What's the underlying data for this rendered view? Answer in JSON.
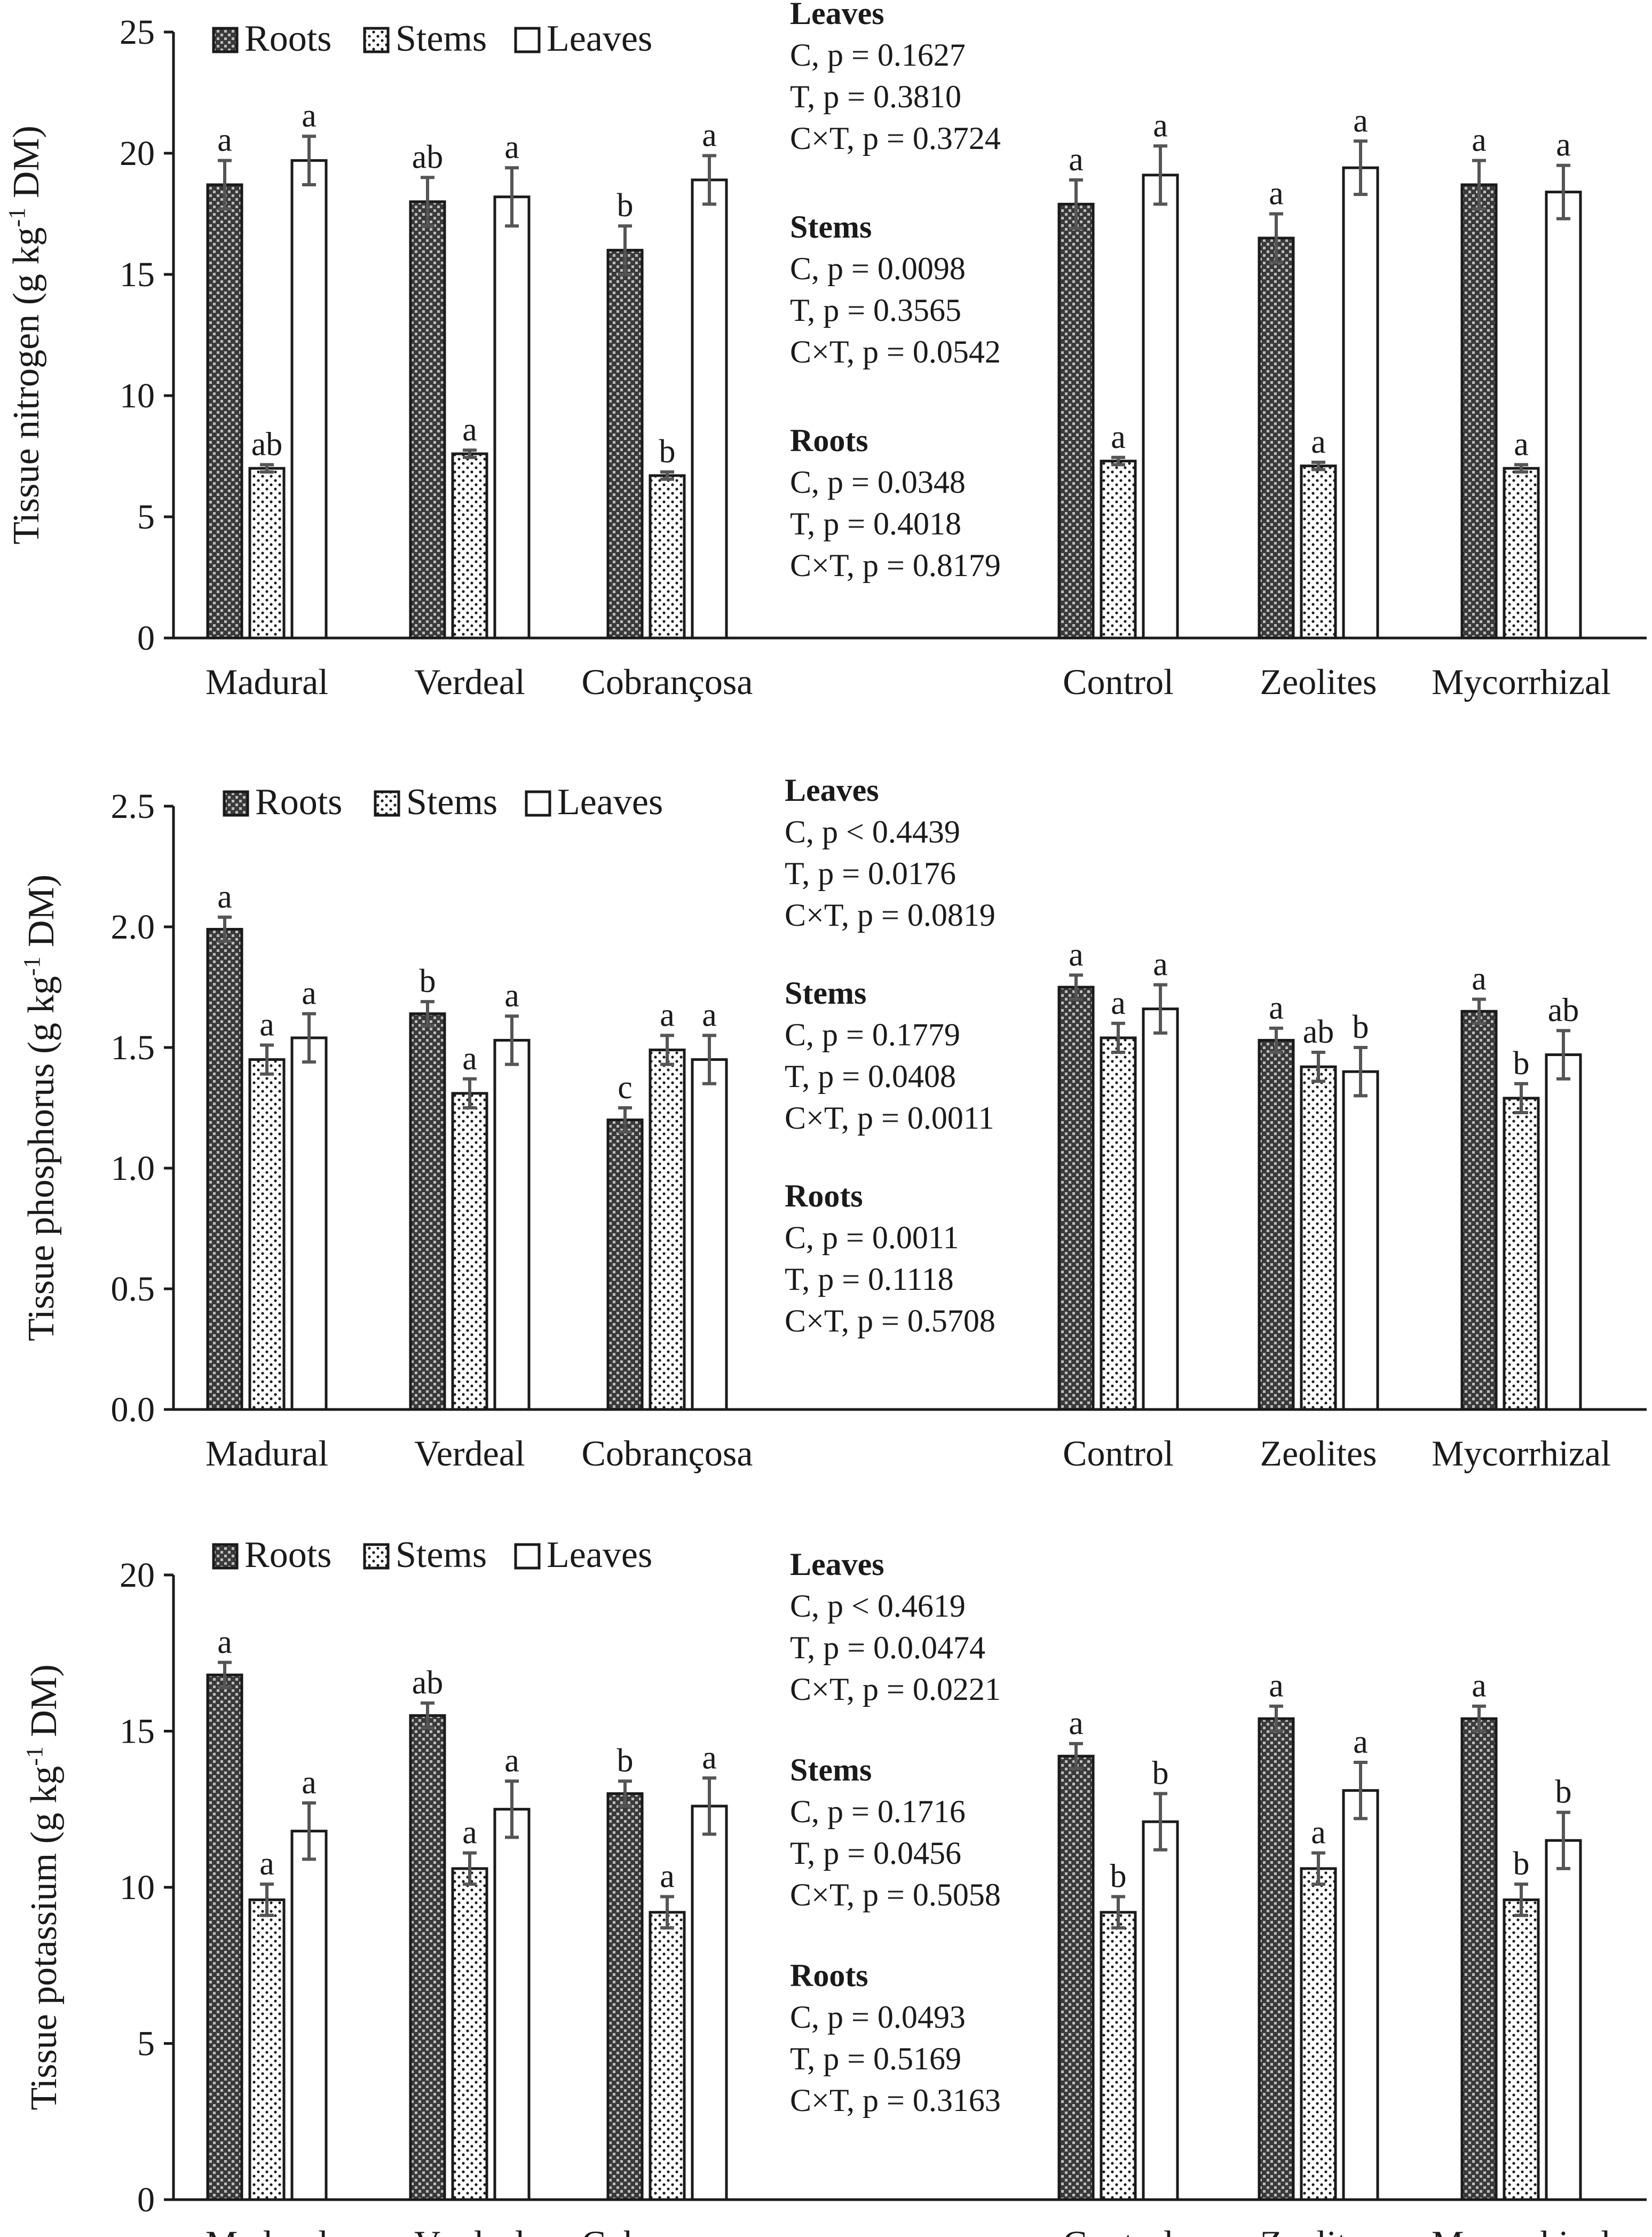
{
  "chart_data": [
    {
      "type": "bar",
      "ylabel": "Tissue nitrogen (g kg-1 DM)",
      "ylabel_main": "Tissue nitrogen (g kg",
      "ylabel_sup": "-1",
      "ylabel_end": " DM)",
      "ylim": [
        0,
        25
      ],
      "yticks": [
        "0",
        "5",
        "10",
        "15",
        "20",
        "25"
      ],
      "tick_values": [
        0,
        5,
        10,
        15,
        20,
        25
      ],
      "categories": [
        "Madural",
        "Verdeal",
        "Cobrançosa",
        "Control",
        "Zeolites",
        "Mycorrhizal"
      ],
      "legend": [
        "Roots",
        "Stems",
        "Leaves"
      ],
      "series": [
        {
          "name": "Roots",
          "values": [
            18.7,
            18.0,
            16.0,
            17.9,
            16.5,
            18.7
          ],
          "errors": [
            1.0,
            1.0,
            1.0,
            1.0,
            1.0,
            1.0
          ],
          "letters": [
            "a",
            "ab",
            "b",
            "a",
            "a",
            "a"
          ]
        },
        {
          "name": "Stems",
          "values": [
            7.0,
            7.6,
            6.7,
            7.3,
            7.1,
            7.0
          ],
          "errors": [
            0.15,
            0.15,
            0.15,
            0.15,
            0.15,
            0.15
          ],
          "letters": [
            "ab",
            "a",
            "b",
            "a",
            "a",
            "a"
          ]
        },
        {
          "name": "Leaves",
          "values": [
            19.7,
            18.2,
            18.9,
            19.1,
            19.4,
            18.4
          ],
          "errors": [
            1.0,
            1.2,
            1.0,
            1.2,
            1.1,
            1.1
          ],
          "letters": [
            "a",
            "a",
            "a",
            "a",
            "a",
            "a"
          ]
        }
      ],
      "annotations": [
        {
          "heading": "Leaves",
          "lines": [
            "C, p = 0.1627",
            "T, p = 0.3810",
            "C×T, p = 0.3724"
          ]
        },
        {
          "heading": "Stems",
          "lines": [
            "C, p = 0.0098",
            "T, p = 0.3565",
            "C×T, p = 0.0542"
          ]
        },
        {
          "heading": "Roots",
          "lines": [
            "C, p = 0.0348",
            "T, p = 0.4018",
            "C×T, p = 0.8179"
          ]
        }
      ]
    },
    {
      "type": "bar",
      "ylabel": "Tissue phosphorus (g kg-1 DM)",
      "ylabel_main": "Tissue phosphorus (g kg",
      "ylabel_sup": "-1",
      "ylabel_end": " DM)",
      "ylim": [
        0,
        2.5
      ],
      "yticks": [
        "0.0",
        "0.5",
        "1.0",
        "1.5",
        "2.0",
        "2.5"
      ],
      "tick_values": [
        0,
        0.5,
        1.0,
        1.5,
        2.0,
        2.5
      ],
      "categories": [
        "Madural",
        "Verdeal",
        "Cobrançosa",
        "Control",
        "Zeolites",
        "Mycorrhizal"
      ],
      "legend": [
        "Roots",
        "Stems",
        "Leaves"
      ],
      "series": [
        {
          "name": "Roots",
          "values": [
            1.99,
            1.64,
            1.2,
            1.75,
            1.53,
            1.65
          ],
          "errors": [
            0.05,
            0.05,
            0.05,
            0.05,
            0.05,
            0.05
          ],
          "letters": [
            "a",
            "b",
            "c",
            "a",
            "a",
            "a"
          ]
        },
        {
          "name": "Stems",
          "values": [
            1.45,
            1.31,
            1.49,
            1.54,
            1.42,
            1.29
          ],
          "errors": [
            0.06,
            0.06,
            0.06,
            0.06,
            0.06,
            0.06
          ],
          "letters": [
            "a",
            "a",
            "a",
            "a",
            "ab",
            "b"
          ]
        },
        {
          "name": "Leaves",
          "values": [
            1.54,
            1.53,
            1.45,
            1.66,
            1.4,
            1.47
          ],
          "errors": [
            0.1,
            0.1,
            0.1,
            0.1,
            0.1,
            0.1
          ],
          "letters": [
            "a",
            "a",
            "a",
            "a",
            "b",
            "ab"
          ]
        }
      ],
      "annotations": [
        {
          "heading": "Leaves",
          "lines": [
            "C, p < 0.4439",
            "T, p = 0.0176",
            "C×T, p = 0.0819"
          ]
        },
        {
          "heading": "Stems",
          "lines": [
            "C, p = 0.1779",
            "T, p = 0.0408",
            "C×T, p = 0.0011"
          ]
        },
        {
          "heading": "Roots",
          "lines": [
            "C, p = 0.0011",
            "T, p = 0.1118",
            "C×T, p = 0.5708"
          ]
        }
      ]
    },
    {
      "type": "bar",
      "ylabel": "Tissue potassium (g kg-1 DM)",
      "ylabel_main": "Tissue potassium (g kg",
      "ylabel_sup": "-1",
      "ylabel_end": " DM)",
      "ylim": [
        0,
        20
      ],
      "yticks": [
        "0",
        "5",
        "10",
        "15",
        "20"
      ],
      "tick_values": [
        0,
        5,
        10,
        15,
        20
      ],
      "categories": [
        "Madural",
        "Verdeal",
        "Cobrançosa",
        "Control",
        "Zeolites",
        "Mycorrhizal"
      ],
      "legend": [
        "Roots",
        "Stems",
        "Leaves"
      ],
      "series": [
        {
          "name": "Roots",
          "values": [
            16.8,
            15.5,
            13.0,
            14.2,
            15.4,
            15.4
          ],
          "errors": [
            0.4,
            0.4,
            0.4,
            0.4,
            0.4,
            0.4
          ],
          "letters": [
            "a",
            "ab",
            "b",
            "a",
            "a",
            "a"
          ]
        },
        {
          "name": "Stems",
          "values": [
            9.6,
            10.6,
            9.2,
            9.2,
            10.6,
            9.6
          ],
          "errors": [
            0.5,
            0.5,
            0.5,
            0.5,
            0.5,
            0.5
          ],
          "letters": [
            "a",
            "a",
            "a",
            "b",
            "a",
            "b"
          ]
        },
        {
          "name": "Leaves",
          "values": [
            11.8,
            12.5,
            12.6,
            12.1,
            13.1,
            11.5
          ],
          "errors": [
            0.9,
            0.9,
            0.9,
            0.9,
            0.9,
            0.9
          ],
          "letters": [
            "a",
            "a",
            "a",
            "b",
            "a",
            "b"
          ]
        }
      ],
      "annotations": [
        {
          "heading": "Leaves",
          "lines": [
            "C, p < 0.4619",
            "T, p = 0.0.0474",
            "C×T, p = 0.0221"
          ]
        },
        {
          "heading": "Stems",
          "lines": [
            "C, p = 0.1716",
            "T, p = 0.0456",
            "C×T, p = 0.5058"
          ]
        },
        {
          "heading": "Roots",
          "lines": [
            "C, p = 0.0493",
            "T, p = 0.5169",
            "C×T, p = 0.3163"
          ]
        }
      ]
    }
  ]
}
